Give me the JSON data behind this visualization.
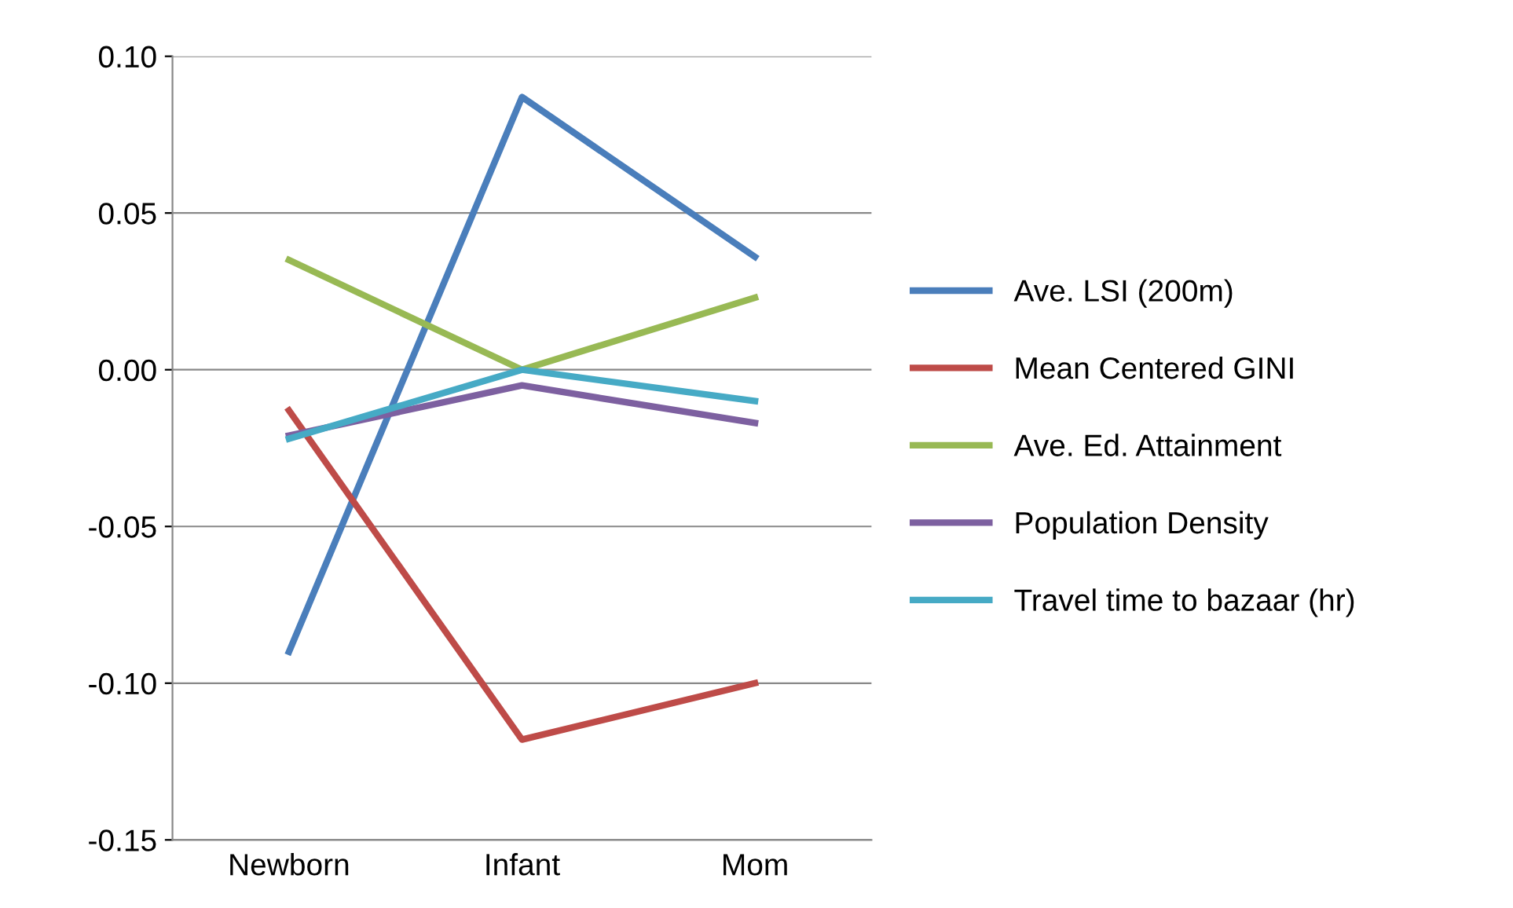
{
  "chart_data": {
    "type": "line",
    "categories": [
      "Newborn",
      "Infant",
      "Mom"
    ],
    "series": [
      {
        "name": "Ave. LSI (200m)",
        "color": "#4a7ebb",
        "values": [
          -0.09,
          0.087,
          0.036
        ]
      },
      {
        "name": "Mean Centered GINI",
        "color": "#be4b48",
        "values": [
          -0.013,
          -0.118,
          -0.1
        ]
      },
      {
        "name": "Ave. Ed. Attainment",
        "color": "#98b954",
        "values": [
          0.035,
          0.0,
          0.023
        ]
      },
      {
        "name": "Population Density",
        "color": "#7d60a0",
        "values": [
          -0.021,
          -0.005,
          -0.017
        ]
      },
      {
        "name": "Travel time to bazaar (hr)",
        "color": "#46aac5",
        "values": [
          -0.022,
          0.0,
          -0.01
        ]
      }
    ],
    "ylim": [
      -0.15,
      0.1
    ],
    "yticks": [
      {
        "value": -0.15,
        "label": "-0.15"
      },
      {
        "value": -0.1,
        "label": "-0.10"
      },
      {
        "value": -0.05,
        "label": "-0.05"
      },
      {
        "value": 0,
        "label": "0.00"
      },
      {
        "value": 0.05,
        "label": "0.05"
      },
      {
        "value": 0.1,
        "label": "0.10"
      }
    ],
    "grid": "y",
    "legend": "right",
    "marker": "none",
    "line_style": "solid"
  }
}
